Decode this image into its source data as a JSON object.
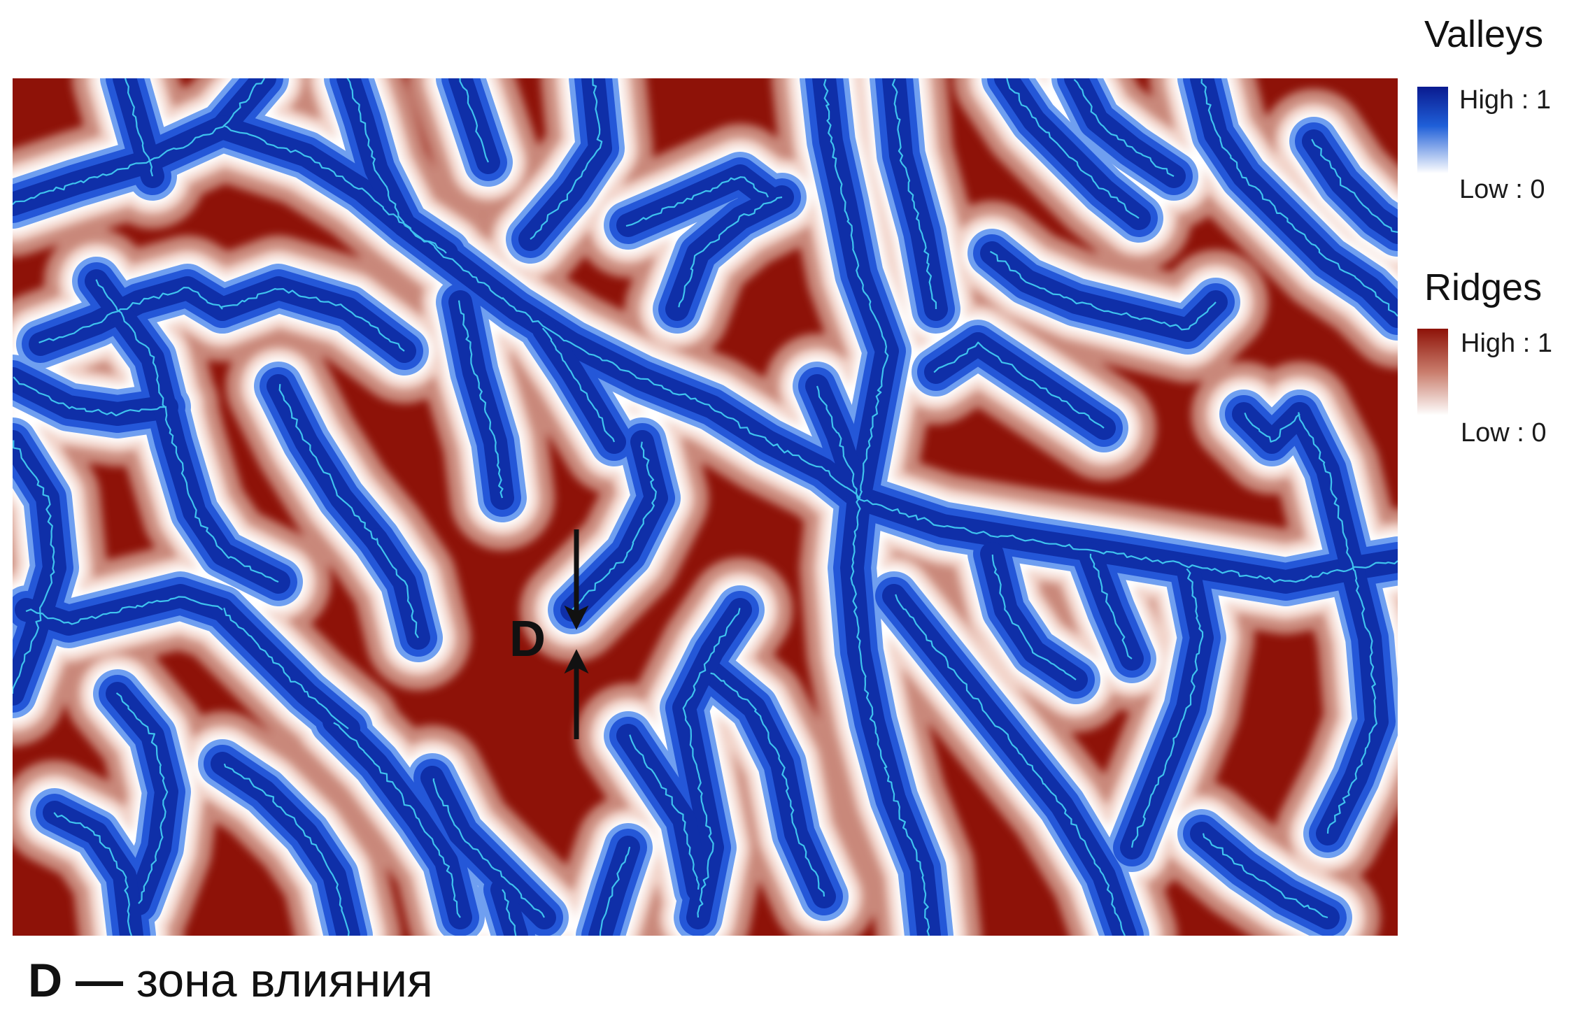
{
  "legend": {
    "valleys": {
      "title": "Valleys",
      "high_label": "High : 1",
      "low_label": "Low : 0",
      "color_high": "#0a1a8f",
      "color_mid": "#1f5fd8",
      "color_low": "#ffffff"
    },
    "ridges": {
      "title": "Ridges",
      "high_label": "High : 1",
      "low_label": "Low : 0",
      "color_high": "#8e1208",
      "color_mid": "#c97d6c",
      "color_low": "#ffffff"
    }
  },
  "map": {
    "zone_marker": "D",
    "stream_color": "#3fc3ee",
    "ridge_color": "#8e1208",
    "valley_color": "#1f4ed0"
  },
  "caption": {
    "key": "D",
    "dash": "—",
    "text": "зона влияния"
  }
}
